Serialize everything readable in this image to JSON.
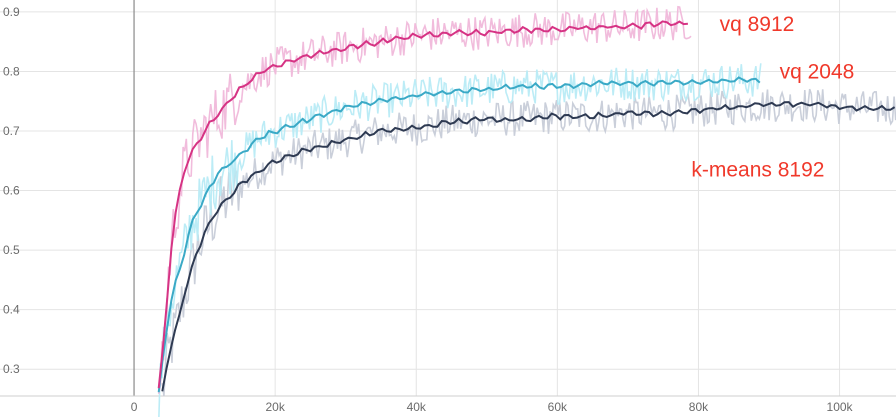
{
  "chart_data": {
    "type": "line",
    "title": "",
    "xlabel": "",
    "ylabel": "",
    "xlim": [
      -19000,
      108000
    ],
    "ylim": [
      0.255,
      0.92
    ],
    "grid": true,
    "x_ticks": [
      {
        "value": 0,
        "label": "0"
      },
      {
        "value": 20000,
        "label": "20k"
      },
      {
        "value": 40000,
        "label": "40k"
      },
      {
        "value": 60000,
        "label": "60k"
      },
      {
        "value": 80000,
        "label": "80k"
      },
      {
        "value": 100000,
        "label": "100k"
      }
    ],
    "y_ticks": [
      {
        "value": 0.3,
        "label": "0.3"
      },
      {
        "value": 0.4,
        "label": "0.4"
      },
      {
        "value": 0.5,
        "label": "0.5"
      },
      {
        "value": 0.6,
        "label": "0.6"
      },
      {
        "value": 0.7,
        "label": "0.7"
      },
      {
        "value": 0.8,
        "label": "0.8"
      },
      {
        "value": 0.9,
        "label": "0.9"
      }
    ],
    "series": [
      {
        "name": "vq 8912",
        "color": "#d63384",
        "raw_color": "#f0b8da",
        "label_color": "#f0392b",
        "label_at": [
          83000,
          0.88
        ],
        "x": [
          3500,
          4500,
          5000,
          6000,
          7000,
          8000,
          10000,
          12000,
          15000,
          18000,
          20000,
          23000,
          26000,
          30000,
          35000,
          40000,
          45000,
          50000,
          55000,
          60000,
          65000,
          70000,
          75000,
          79000
        ],
        "y": [
          0.27,
          0.38,
          0.48,
          0.57,
          0.63,
          0.66,
          0.7,
          0.73,
          0.77,
          0.8,
          0.81,
          0.82,
          0.83,
          0.84,
          0.85,
          0.86,
          0.865,
          0.865,
          0.87,
          0.87,
          0.875,
          0.875,
          0.88,
          0.882
        ]
      },
      {
        "name": "vq 2048",
        "color": "#3aa9c6",
        "raw_color": "#b8ebf5",
        "label_color": "#f0392b",
        "label_at": [
          91500,
          0.8
        ],
        "x": [
          3500,
          4500,
          5500,
          7000,
          8000,
          10000,
          12000,
          15000,
          18000,
          20000,
          25000,
          30000,
          35000,
          40000,
          45000,
          50000,
          55000,
          60000,
          65000,
          70000,
          75000,
          80000,
          85000,
          89000
        ],
        "y": [
          0.26,
          0.36,
          0.43,
          0.49,
          0.54,
          0.59,
          0.63,
          0.66,
          0.69,
          0.7,
          0.72,
          0.74,
          0.75,
          0.76,
          0.765,
          0.77,
          0.775,
          0.775,
          0.78,
          0.78,
          0.78,
          0.782,
          0.785,
          0.785
        ]
      },
      {
        "name": "k-means 8192",
        "color": "#2e3a52",
        "raw_color": "#c7ccd8",
        "label_color": "#f0392b",
        "label_at": [
          79000,
          0.635
        ],
        "x": [
          4000,
          5000,
          6000,
          7000,
          8000,
          9000,
          10000,
          12000,
          15000,
          18000,
          20000,
          25000,
          30000,
          35000,
          40000,
          45000,
          50000,
          55000,
          60000,
          65000,
          70000,
          75000,
          80000,
          85000,
          90000,
          95000,
          100000,
          105000,
          108000
        ],
        "y": [
          0.26,
          0.33,
          0.37,
          0.42,
          0.46,
          0.5,
          0.53,
          0.57,
          0.61,
          0.635,
          0.65,
          0.67,
          0.685,
          0.7,
          0.705,
          0.715,
          0.72,
          0.72,
          0.725,
          0.725,
          0.73,
          0.73,
          0.735,
          0.74,
          0.745,
          0.745,
          0.74,
          0.738,
          0.738
        ]
      }
    ]
  }
}
